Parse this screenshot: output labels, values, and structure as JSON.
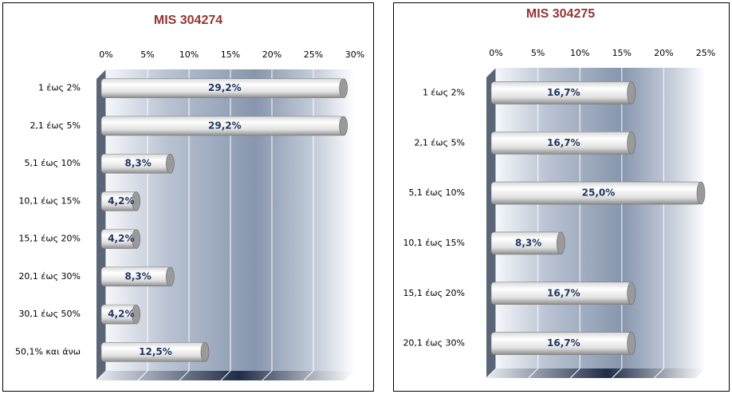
{
  "chart_data": [
    {
      "type": "bar",
      "orientation": "horizontal",
      "title": "MIS 304274",
      "categories": [
        "1 έως 2%",
        "2,1 έως 5%",
        "5,1 έως 10%",
        "10,1 έως 15%",
        "15,1 έως 20%",
        "20,1 έως 30%",
        "30,1 έως 50%",
        "50,1% και άνω"
      ],
      "values": [
        29.2,
        29.2,
        8.3,
        4.2,
        4.2,
        8.3,
        4.2,
        12.5
      ],
      "value_labels": [
        "29,2%",
        "29,2%",
        "8,3%",
        "4,2%",
        "4,2%",
        "8,3%",
        "4,2%",
        "12,5%"
      ],
      "xlim": [
        0,
        30
      ],
      "xticks": [
        {
          "value": 0,
          "label": "0%"
        },
        {
          "value": 5,
          "label": "5%"
        },
        {
          "value": 10,
          "label": "10%"
        },
        {
          "value": 15,
          "label": "15%"
        },
        {
          "value": 20,
          "label": "20%"
        },
        {
          "value": 25,
          "label": "25%"
        },
        {
          "value": 30,
          "label": "30%"
        }
      ],
      "grid": true
    },
    {
      "type": "bar",
      "orientation": "horizontal",
      "title": "MIS 304275",
      "categories": [
        "1 έως 2%",
        "2,1 έως 5%",
        "5,1 έως 10%",
        "10,1 έως 15%",
        "15,1 έως 20%",
        "20,1 έως 30%"
      ],
      "values": [
        16.7,
        16.7,
        25.0,
        8.3,
        16.7,
        16.7
      ],
      "value_labels": [
        "16,7%",
        "16,7%",
        "25,0%",
        "8,3%",
        "16,7%",
        "16,7%"
      ],
      "xlim": [
        0,
        25
      ],
      "xticks": [
        {
          "value": 0,
          "label": "0%"
        },
        {
          "value": 5,
          "label": "5%"
        },
        {
          "value": 10,
          "label": "10%"
        },
        {
          "value": 15,
          "label": "15%"
        },
        {
          "value": 20,
          "label": "20%"
        },
        {
          "value": 25,
          "label": "25%"
        }
      ],
      "grid": true
    }
  ]
}
